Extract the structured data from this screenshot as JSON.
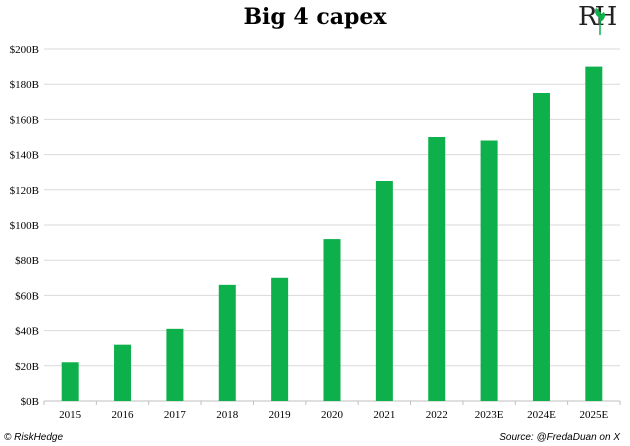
{
  "title": "Big 4 capex",
  "logo": {
    "text": "RH",
    "icon": "riskhedge-logo"
  },
  "footer": {
    "left": "© RiskHedge",
    "right": "Source: @FredaDuan on X"
  },
  "colors": {
    "bar": "#0db04b",
    "grid": "#d9d9d9",
    "axis": "#bfbfbf",
    "text": "#000000"
  },
  "chart_data": {
    "type": "bar",
    "title": "Big 4 capex",
    "xlabel": "",
    "ylabel": "",
    "categories": [
      "2015",
      "2016",
      "2017",
      "2018",
      "2019",
      "2020",
      "2021",
      "2022",
      "2023E",
      "2024E",
      "2025E"
    ],
    "values": [
      22,
      32,
      41,
      66,
      70,
      92,
      125,
      150,
      148,
      175,
      190
    ],
    "ylim": [
      0,
      200
    ],
    "yticks": [
      0,
      20,
      40,
      60,
      80,
      100,
      120,
      140,
      160,
      180,
      200
    ],
    "ytick_labels": [
      "$0B",
      "$20B",
      "$40B",
      "$60B",
      "$80B",
      "$100B",
      "$120B",
      "$140B",
      "$160B",
      "$180B",
      "$200B"
    ],
    "grid": true,
    "legend": "none"
  }
}
